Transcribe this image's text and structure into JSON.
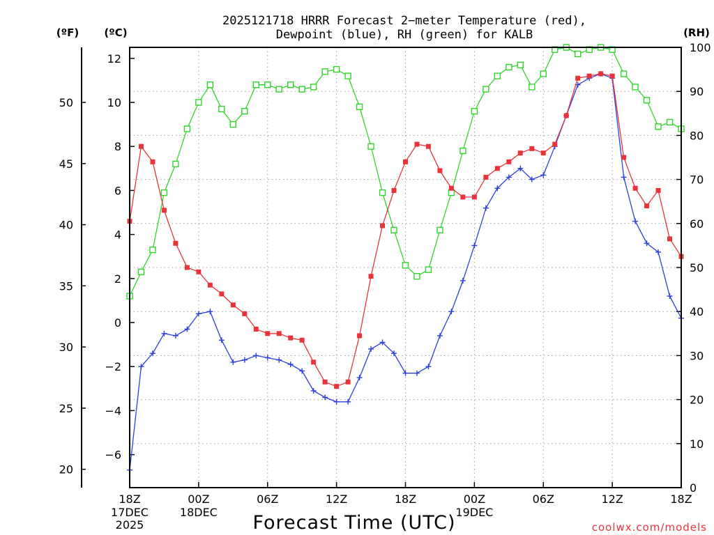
{
  "chart_data": {
    "type": "line",
    "title_line1": "2025121718 HRRR Forecast 2−meter Temperature (red),",
    "title_line2": "Dewpoint (blue), RH (green) for KALB",
    "xlabel": "Forecast Time (UTC)",
    "unit_f": "(ºF)",
    "unit_c": "(ºC)",
    "unit_rh": "(RH)",
    "credit": "coolwx.com/models",
    "x": [
      0,
      1,
      2,
      3,
      4,
      5,
      6,
      7,
      8,
      9,
      10,
      11,
      12,
      13,
      14,
      15,
      16,
      17,
      18,
      19,
      20,
      21,
      22,
      23,
      24,
      25,
      26,
      27,
      28,
      29,
      30,
      31,
      32,
      33,
      34,
      35,
      36,
      37,
      38,
      39,
      40,
      41,
      42,
      43,
      44,
      45,
      46,
      47,
      48
    ],
    "xlim": [
      0,
      48
    ],
    "x_ticks": [
      {
        "x": 0,
        "label": "18Z"
      },
      {
        "x": 6,
        "label": "00Z"
      },
      {
        "x": 12,
        "label": "06Z"
      },
      {
        "x": 18,
        "label": "12Z"
      },
      {
        "x": 24,
        "label": "18Z"
      },
      {
        "x": 30,
        "label": "00Z"
      },
      {
        "x": 36,
        "label": "06Z"
      },
      {
        "x": 42,
        "label": "12Z"
      },
      {
        "x": 48,
        "label": "18Z"
      }
    ],
    "date_labels": [
      {
        "x": 0,
        "lines": [
          "17DEC",
          "2025"
        ]
      },
      {
        "x": 6,
        "lines": [
          "18DEC"
        ]
      },
      {
        "x": 30,
        "lines": [
          "19DEC"
        ]
      }
    ],
    "c_ylim": [
      -7.5,
      12.5
    ],
    "c_ticks": [
      12,
      10,
      8,
      6,
      4,
      2,
      0,
      -2,
      -4,
      -6
    ],
    "c_tick_labels": [
      "12",
      "10",
      "8",
      "6",
      "4",
      "2",
      "0",
      "−2",
      "−4",
      "−6"
    ],
    "f_ticks": [
      50,
      45,
      40,
      35,
      30,
      25,
      20
    ],
    "f_tick_labels": [
      "50",
      "45",
      "40",
      "35",
      "30",
      "25",
      "20"
    ],
    "rh_ylim": [
      0,
      100
    ],
    "rh_ticks": [
      100,
      90,
      80,
      70,
      60,
      50,
      40,
      30,
      20,
      10,
      0
    ],
    "rh_tick_labels": [
      "100",
      "90",
      "80",
      "70",
      "60",
      "50",
      "40",
      "30",
      "20",
      "10",
      "0"
    ],
    "series": [
      {
        "name": "Temperature",
        "unit": "C",
        "color": "#e8333a",
        "marker": "filled-square",
        "values": [
          4.6,
          8.0,
          7.3,
          5.1,
          3.6,
          2.5,
          2.3,
          1.7,
          1.3,
          0.8,
          0.4,
          -0.3,
          -0.5,
          -0.5,
          -0.7,
          -0.8,
          -1.8,
          -2.7,
          -2.9,
          -2.7,
          -0.6,
          2.1,
          4.4,
          6.0,
          7.3,
          8.1,
          8.0,
          6.9,
          6.1,
          5.7,
          5.7,
          6.6,
          7.0,
          7.3,
          7.7,
          7.9,
          7.7,
          8.1,
          9.4,
          11.1,
          11.2,
          11.3,
          11.2,
          7.5,
          6.1,
          5.3,
          6.0,
          3.8,
          3.0
        ]
      },
      {
        "name": "Dewpoint",
        "unit": "C",
        "color": "#2b3fe0",
        "marker": "plus",
        "values": [
          -6.7,
          -2.0,
          -1.4,
          -0.5,
          -0.6,
          -0.3,
          0.4,
          0.5,
          -0.8,
          -1.8,
          -1.7,
          -1.5,
          -1.6,
          -1.7,
          -1.9,
          -2.2,
          -3.1,
          -3.4,
          -3.6,
          -3.6,
          -2.5,
          -1.2,
          -0.9,
          -1.4,
          -2.3,
          -2.3,
          -2.0,
          -0.6,
          0.5,
          1.9,
          3.5,
          5.2,
          6.1,
          6.6,
          7.0,
          6.5,
          6.7,
          8.0,
          9.4,
          10.8,
          11.1,
          11.3,
          11.1,
          6.6,
          4.6,
          3.6,
          3.2,
          1.2,
          0.2
        ]
      },
      {
        "name": "RH",
        "unit": "%",
        "color": "#2fd62a",
        "marker": "open-square",
        "values": [
          43.5,
          49.0,
          54.0,
          67.0,
          73.5,
          81.5,
          87.5,
          91.5,
          86.0,
          82.5,
          85.5,
          91.5,
          91.5,
          90.5,
          91.5,
          90.5,
          91.0,
          94.5,
          95.0,
          93.5,
          86.5,
          77.5,
          67.0,
          58.5,
          50.5,
          48.0,
          49.5,
          58.5,
          67.0,
          76.5,
          85.5,
          90.5,
          93.5,
          95.5,
          96.0,
          91.0,
          94.0,
          99.5,
          100.0,
          98.5,
          99.5,
          100.0,
          99.5,
          94.0,
          91.0,
          88.0,
          82.0,
          83.0,
          81.5
        ]
      }
    ]
  }
}
